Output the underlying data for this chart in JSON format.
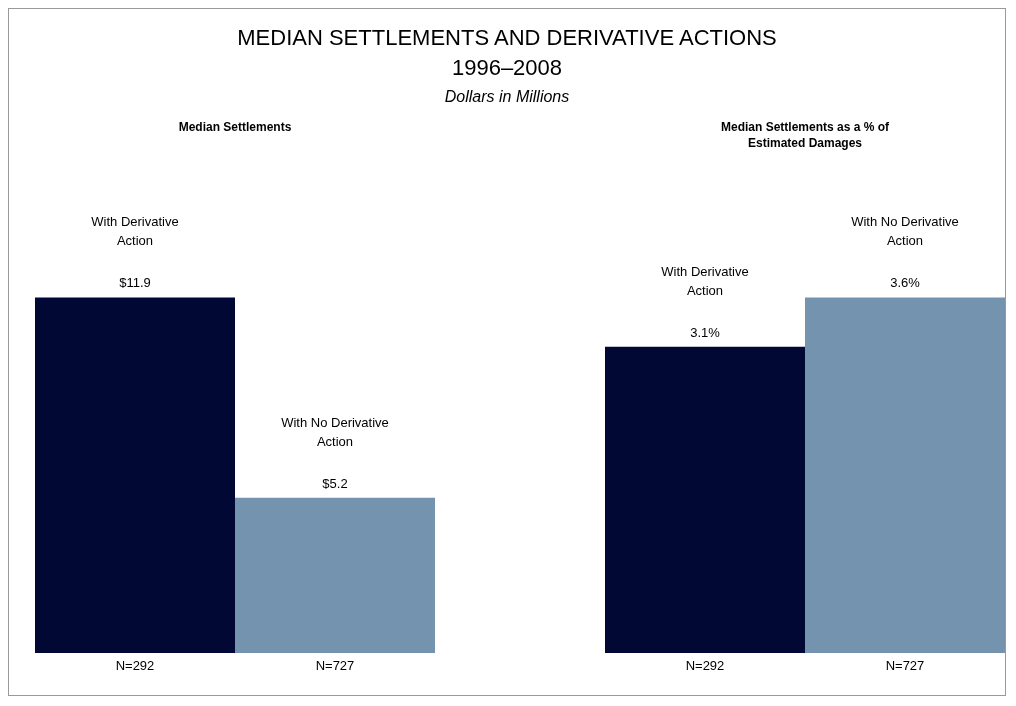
{
  "chart_data": [
    {
      "type": "other",
      "title": "MEDIAN SETTLEMENTS AND DERIVATIVE ACTIONS",
      "subtitle": "1996–2008",
      "annotations": [
        "Dollars in Millions"
      ]
    },
    {
      "type": "bar",
      "title": "Median Settlements",
      "categories": [
        "N=292",
        "N=727"
      ],
      "values": [
        11.9,
        5.2
      ],
      "colors": [
        "#000833",
        "#7393ae"
      ],
      "value_labels": [
        "$11.9",
        "$5.2"
      ],
      "annotations": [
        "With Derivative Action",
        "With No Derivative Action"
      ]
    },
    {
      "type": "bar",
      "title": "Median Settlements as a % of Estimated Damages",
      "categories": [
        "N=292",
        "N=727"
      ],
      "values": [
        3.1,
        3.6
      ],
      "colors": [
        "#000833",
        "#7393ae"
      ],
      "value_labels": [
        "3.1%",
        "3.6%"
      ],
      "annotations": [
        "With Derivative Action",
        "With No Derivative Action"
      ]
    }
  ]
}
